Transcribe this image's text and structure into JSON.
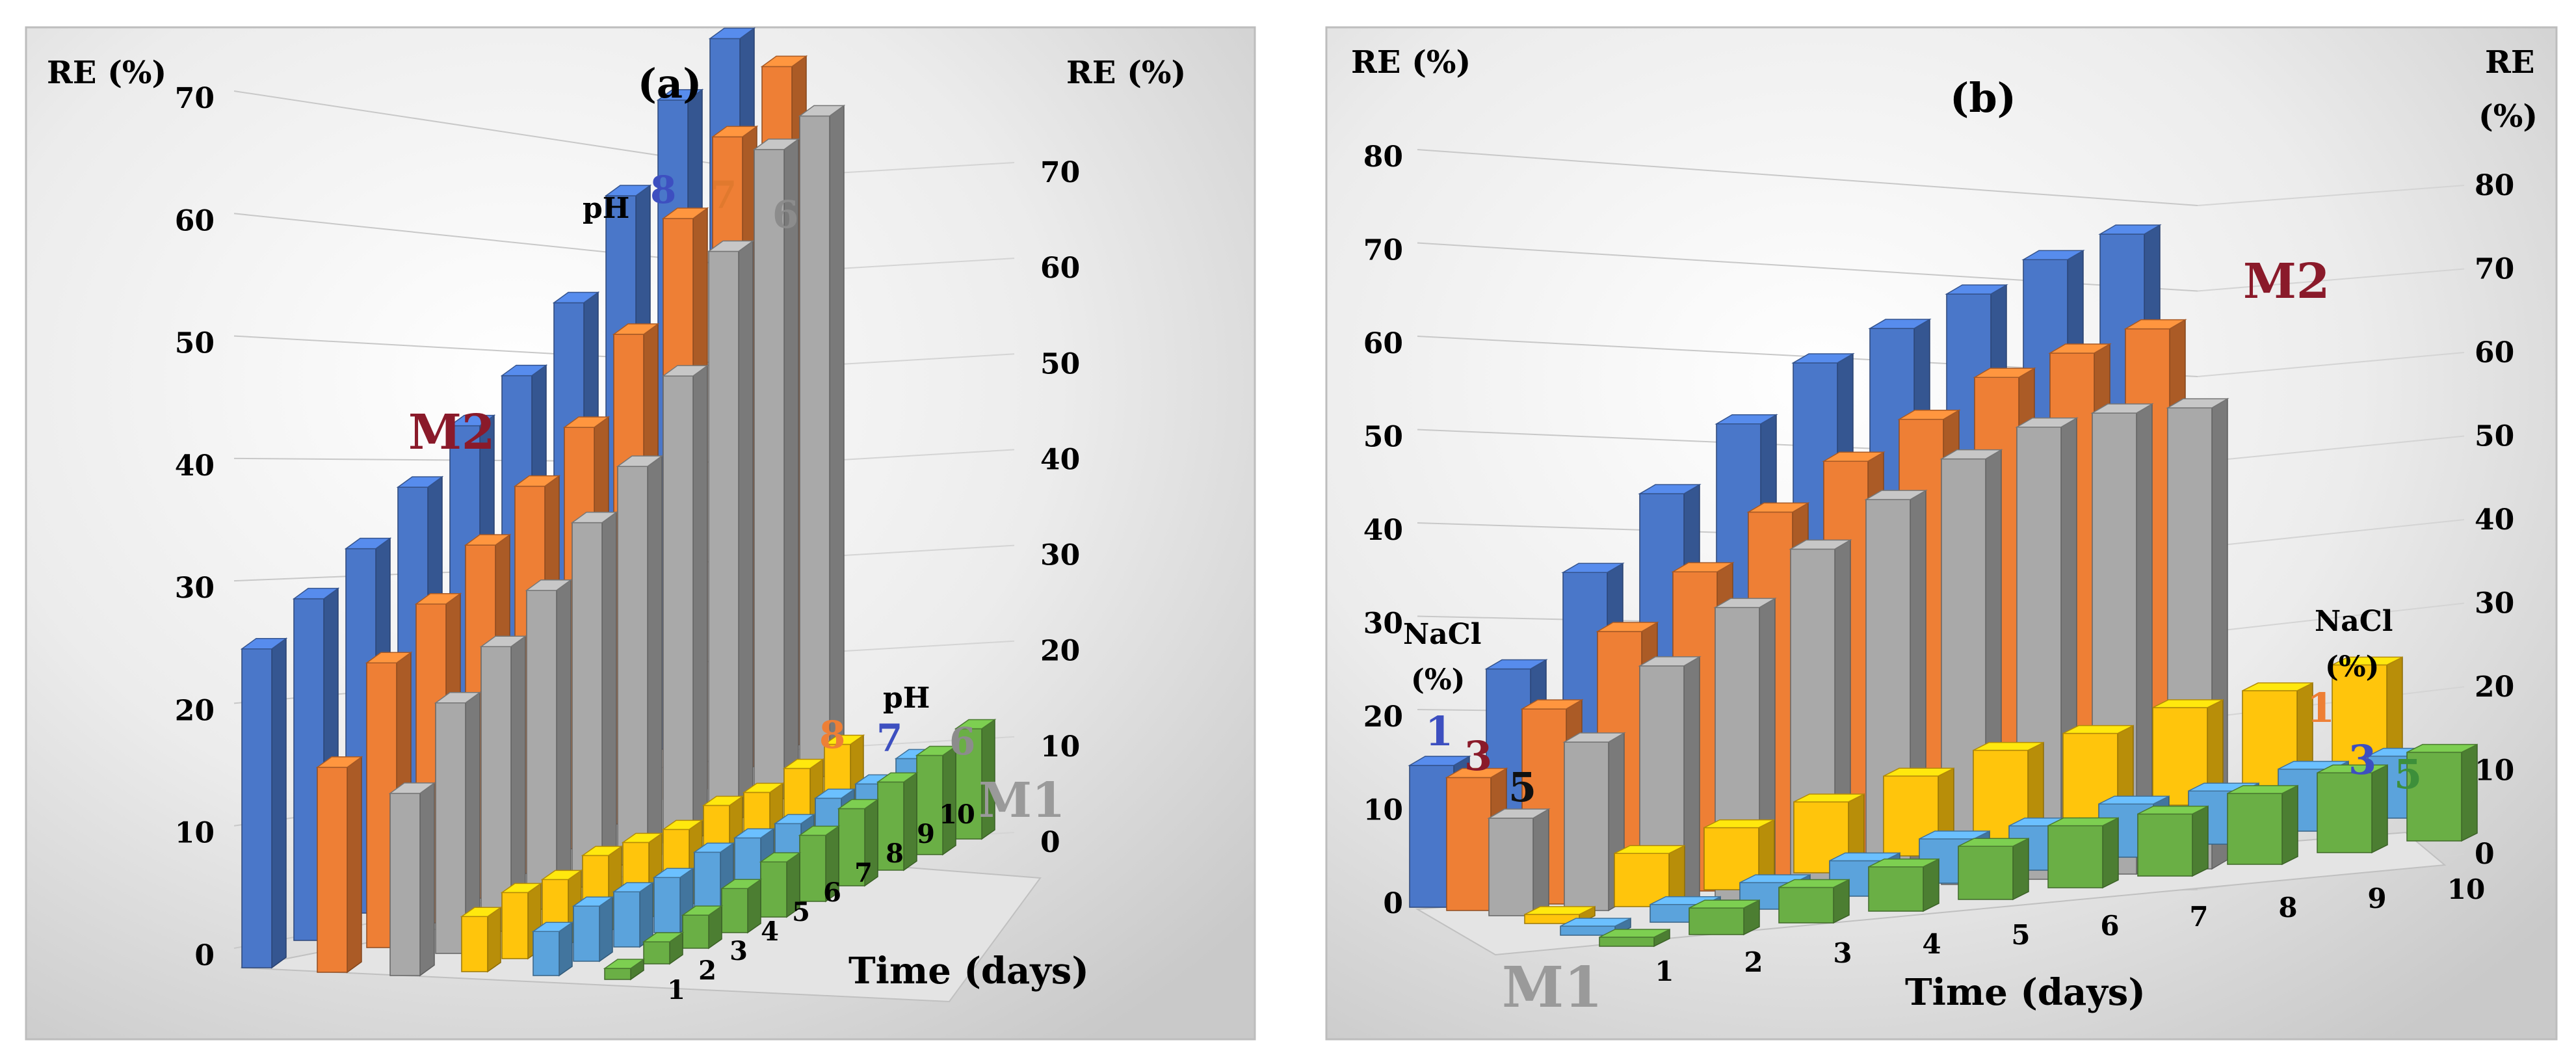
{
  "panels": [
    {
      "panel_label": "(a)",
      "axis_label_left": "RE (%)",
      "axis_label_right": "RE (%)",
      "left_ticks": [
        "0",
        "10",
        "20",
        "30",
        "40",
        "50",
        "60",
        "70"
      ],
      "right_ticks": [
        "0",
        "10",
        "20",
        "30",
        "40",
        "50",
        "60",
        "70"
      ],
      "x_label": "Time (days)",
      "x_ticks": [
        "1",
        "2",
        "3",
        "4",
        "5",
        "6",
        "7",
        "8",
        "9",
        "10"
      ],
      "group_labels": {
        "upper": "M2",
        "lower": "M1"
      },
      "legend_upper_title": "pH",
      "legend_lower_title": "pH",
      "upper_series_labels": [
        "8",
        "7",
        "6"
      ],
      "lower_series_labels": [
        "8",
        "7",
        "6"
      ]
    },
    {
      "panel_label": "(b)",
      "axis_label_left": "RE (%)",
      "axis_label_right_line1": "RE",
      "axis_label_right_line2": "(%)",
      "left_ticks": [
        "0",
        "10",
        "20",
        "30",
        "40",
        "50",
        "60",
        "70",
        "80"
      ],
      "right_ticks": [
        "0",
        "10",
        "20",
        "30",
        "40",
        "50",
        "60",
        "70",
        "80"
      ],
      "x_label": "Time (days)",
      "x_ticks": [
        "1",
        "2",
        "3",
        "4",
        "5",
        "6",
        "7",
        "8",
        "9",
        "10"
      ],
      "group_labels": {
        "upper": "M2",
        "lower": "M1"
      },
      "legend_left_title_line1": "NaCl",
      "legend_left_title_line2": "(%)",
      "legend_right_title_line1": "NaCl",
      "legend_right_title_line2": "(%)",
      "upper_series_labels": [
        "1",
        "3",
        "5"
      ],
      "lower_series_labels": [
        "1",
        "3",
        "5"
      ]
    }
  ],
  "colors": {
    "blue": "#4a77c9",
    "orange": "#ee7f35",
    "gray": "#a9a9a9",
    "yellow": "#ffc50c",
    "lightblue": "#5ba3dc",
    "green": "#6aaf45",
    "m2": "#8a1a2a",
    "m1": "#9a9a9a",
    "lab_blue": "#3d4fc0",
    "lab_orange": "#e0792e",
    "lab_gray": "#8c8c8c",
    "lab_dark_red": "#8a1a2a",
    "lab_black": "#111111",
    "lab_green": "#3d8f3a"
  },
  "chart_data": [
    {
      "type": "bar",
      "title": "(a)",
      "xlabel": "Time (days)",
      "ylabel": "RE (%)",
      "categories": [
        "1",
        "2",
        "3",
        "4",
        "5",
        "6",
        "7",
        "8",
        "9",
        "10"
      ],
      "ylim": [
        0,
        70
      ],
      "series": [
        {
          "name": "M2 pH 8",
          "values": [
            28,
            30,
            32,
            35,
            38,
            40,
            44,
            51,
            57,
            60
          ]
        },
        {
          "name": "M2 pH 7",
          "values": [
            18,
            25,
            28,
            31,
            34,
            37,
            43,
            51,
            56,
            60
          ]
        },
        {
          "name": "M2 pH 6",
          "values": [
            16,
            22,
            25,
            28,
            32,
            35,
            41,
            50,
            57,
            58
          ]
        },
        {
          "name": "M1 pH 8",
          "values": [
            5,
            6,
            6,
            7,
            7,
            7,
            8,
            8,
            9,
            10
          ]
        },
        {
          "name": "M1 pH 7",
          "values": [
            4,
            5,
            5,
            5,
            6,
            6,
            6,
            7,
            7,
            8
          ]
        },
        {
          "name": "M1 pH 6",
          "values": [
            1,
            2,
            3,
            4,
            5,
            6,
            7,
            8,
            9,
            10
          ]
        }
      ]
    },
    {
      "type": "bar",
      "title": "(b)",
      "xlabel": "Time (days)",
      "ylabel": "RE (%)",
      "categories": [
        "1",
        "2",
        "3",
        "4",
        "5",
        "6",
        "7",
        "8",
        "9",
        "10"
      ],
      "ylim": [
        0,
        80
      ],
      "series": [
        {
          "name": "M2 NaCl 1%",
          "values": [
            16,
            26,
            36,
            44,
            51,
            57,
            60,
            63,
            66,
            68
          ]
        },
        {
          "name": "M2 NaCl 3%",
          "values": [
            15,
            22,
            30,
            36,
            42,
            47,
            51,
            55,
            57,
            59
          ]
        },
        {
          "name": "M2 NaCl 5%",
          "values": [
            11,
            19,
            27,
            33,
            39,
            44,
            48,
            51,
            52,
            52
          ]
        },
        {
          "name": "M1 NaCl 1%",
          "values": [
            1,
            6,
            7,
            8,
            9,
            10,
            10,
            11,
            11,
            12
          ]
        },
        {
          "name": "M1 NaCl 3%",
          "values": [
            1,
            2,
            3,
            4,
            5,
            5,
            6,
            6,
            7,
            7
          ]
        },
        {
          "name": "M1 NaCl 5%",
          "values": [
            1,
            3,
            4,
            5,
            6,
            7,
            7,
            8,
            9,
            10
          ]
        }
      ]
    }
  ]
}
